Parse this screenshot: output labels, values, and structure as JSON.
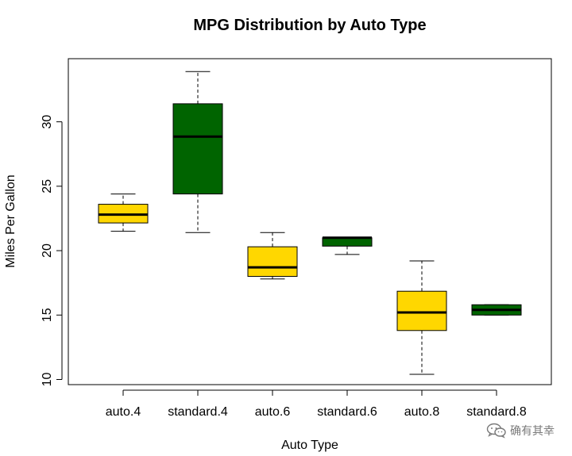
{
  "chart_data": {
    "type": "box",
    "title": "MPG Distribution by Auto Type",
    "xlabel": "Auto Type",
    "ylabel": "Miles Per Gallon",
    "ylim": [
      9.6,
      34.9
    ],
    "yticks": [
      10,
      15,
      20,
      25,
      30
    ],
    "grid": false,
    "categories": [
      "auto.4",
      "standard.4",
      "auto.6",
      "standard.6",
      "auto.8",
      "standard.8"
    ],
    "fill_colors": [
      "#FFD700",
      "#006400",
      "#FFD700",
      "#006400",
      "#FFD700",
      "#006400"
    ],
    "boxes": [
      {
        "category": "auto.4",
        "min": 21.5,
        "q1": 22.15,
        "median": 22.8,
        "q3": 23.6,
        "max": 24.4
      },
      {
        "category": "standard.4",
        "min": 21.4,
        "q1": 24.4,
        "median": 28.85,
        "q3": 31.4,
        "max": 33.9
      },
      {
        "category": "auto.6",
        "min": 17.8,
        "q1": 18.0,
        "median": 18.7,
        "q3": 20.3,
        "max": 21.4
      },
      {
        "category": "standard.6",
        "min": 19.7,
        "q1": 20.35,
        "median": 21.0,
        "q3": 21.0,
        "max": 21.0
      },
      {
        "category": "auto.8",
        "min": 10.4,
        "q1": 13.8,
        "median": 15.2,
        "q3": 16.85,
        "max": 19.2
      },
      {
        "category": "standard.8",
        "min": 15.0,
        "q1": 15.0,
        "median": 15.4,
        "q3": 15.8,
        "max": 15.8
      }
    ]
  },
  "watermark": {
    "text": "确有其幸",
    "icon": "wechat-icon"
  }
}
